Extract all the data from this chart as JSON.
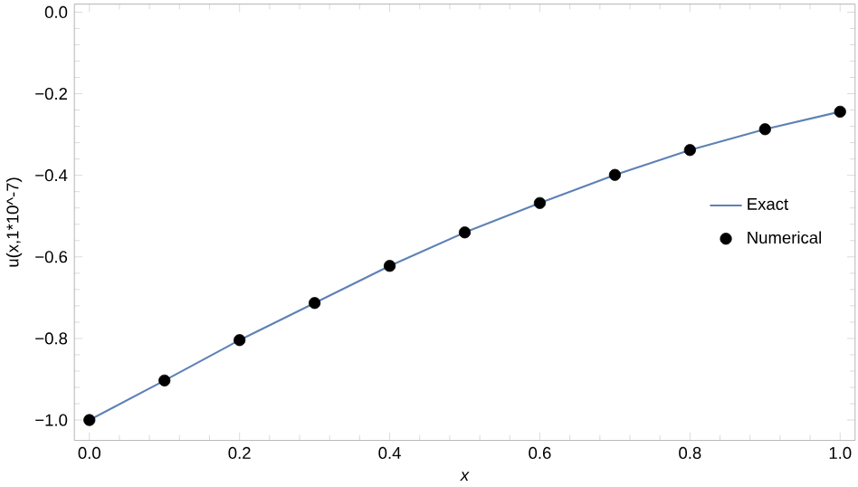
{
  "chart_data": {
    "type": "line",
    "xlabel": "x",
    "ylabel": "u(x,1*10^-7)",
    "x": [
      0,
      0.1,
      0.2,
      0.3,
      0.4,
      0.5,
      0.6,
      0.7,
      0.8,
      0.9,
      1.0
    ],
    "series": [
      {
        "name": "Exact",
        "color": "#5e81b5",
        "marker": "none",
        "values": [
          -1.0,
          -0.903,
          -0.804,
          -0.713,
          -0.622,
          -0.54,
          -0.468,
          -0.399,
          -0.338,
          -0.287,
          -0.244
        ]
      },
      {
        "name": "Numerical",
        "type": "scatter",
        "color": "#000000",
        "marker": "circle",
        "values": [
          -1.0,
          -0.903,
          -0.804,
          -0.713,
          -0.622,
          -0.54,
          -0.468,
          -0.399,
          -0.338,
          -0.287,
          -0.244
        ]
      }
    ],
    "xlim": [
      -0.02,
      1.02
    ],
    "ylim": [
      -1.05,
      0.02
    ],
    "xticks": [
      {
        "value": 0,
        "label": "0.0"
      },
      0.2,
      0.4,
      0.6,
      0.8,
      {
        "value": 1,
        "label": "1.0"
      }
    ],
    "yticks": [
      {
        "value": -1,
        "label": "−1.0"
      },
      {
        "value": -0.8,
        "label": "−0.8"
      },
      {
        "value": -0.6,
        "label": "−0.6"
      },
      {
        "value": -0.4,
        "label": "−0.4"
      },
      {
        "value": -0.2,
        "label": "−0.2"
      },
      {
        "value": 0,
        "label": "0.0"
      }
    ],
    "grid": false,
    "legend": "right"
  }
}
